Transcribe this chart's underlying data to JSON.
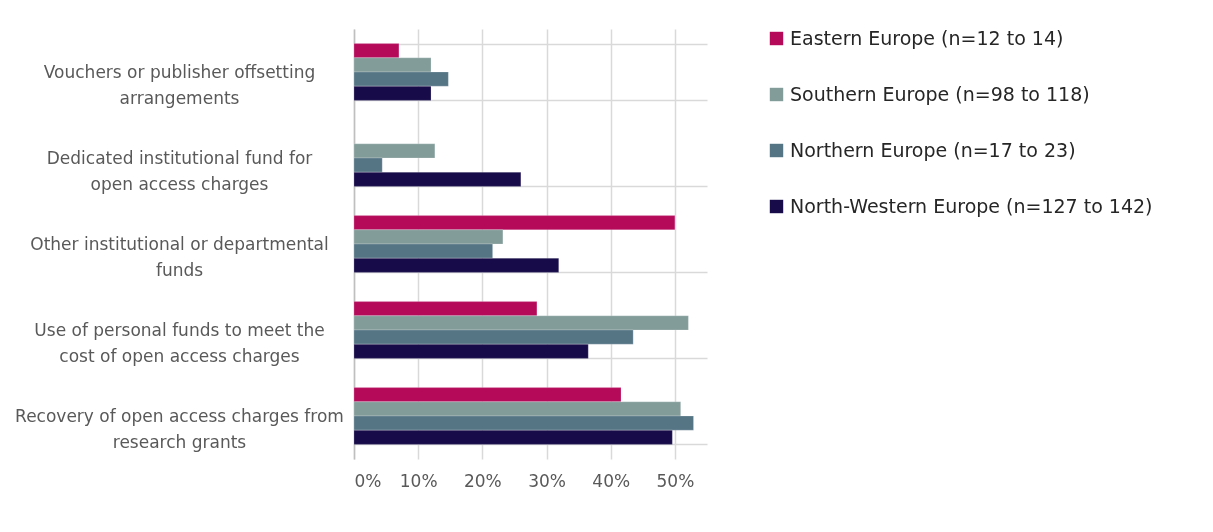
{
  "chart_data": {
    "type": "bar",
    "orientation": "horizontal",
    "categories": [
      "Vouchers or publisher offsetting arrangements",
      "Dedicated institutional fund for open access charges",
      "Other institutional or departmental funds",
      "Use of personal funds to meet the cost of open access charges",
      "Recovery of open access charges from research grants"
    ],
    "series": [
      {
        "name": "Eastern Europe (n=12 to 14)",
        "color": "#b5095a",
        "values": [
          7.0,
          null,
          50.0,
          28.5,
          41.6
        ]
      },
      {
        "name": "Southern Europe (n=98 to 118)",
        "color": "#829c9a",
        "values": [
          12.0,
          12.6,
          23.2,
          52.1,
          50.9
        ]
      },
      {
        "name": "Northern Europe (n=17 to 23)",
        "color": "#557585",
        "values": [
          14.7,
          4.4,
          21.6,
          43.5,
          52.9
        ]
      },
      {
        "name": "North-Western Europe (n=127 to 142)",
        "color": "#170c49",
        "values": [
          12.0,
          26.0,
          31.9,
          36.5,
          49.6
        ]
      }
    ],
    "xlim": [
      0,
      55
    ],
    "xticks": [
      {
        "value": 0,
        "label": "0%"
      },
      {
        "value": 10,
        "label": "10%"
      },
      {
        "value": 20,
        "label": "20%"
      },
      {
        "value": 30,
        "label": "30%"
      },
      {
        "value": 40,
        "label": "40%"
      },
      {
        "value": 50,
        "label": "50%"
      }
    ],
    "grid": true,
    "legend": "right"
  }
}
